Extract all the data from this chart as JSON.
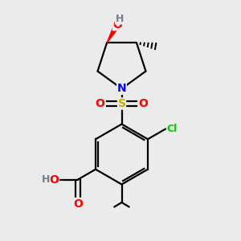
{
  "background_color": "#ebebeb",
  "atom_colors": {
    "C": "#000000",
    "H": "#708090",
    "O": "#ff0000",
    "N": "#0000ff",
    "S": "#ccaa00",
    "Cl": "#00cc00"
  },
  "bond_color": "#000000",
  "lw": 1.6,
  "fig_size": [
    3.0,
    3.0
  ],
  "dpi": 100
}
